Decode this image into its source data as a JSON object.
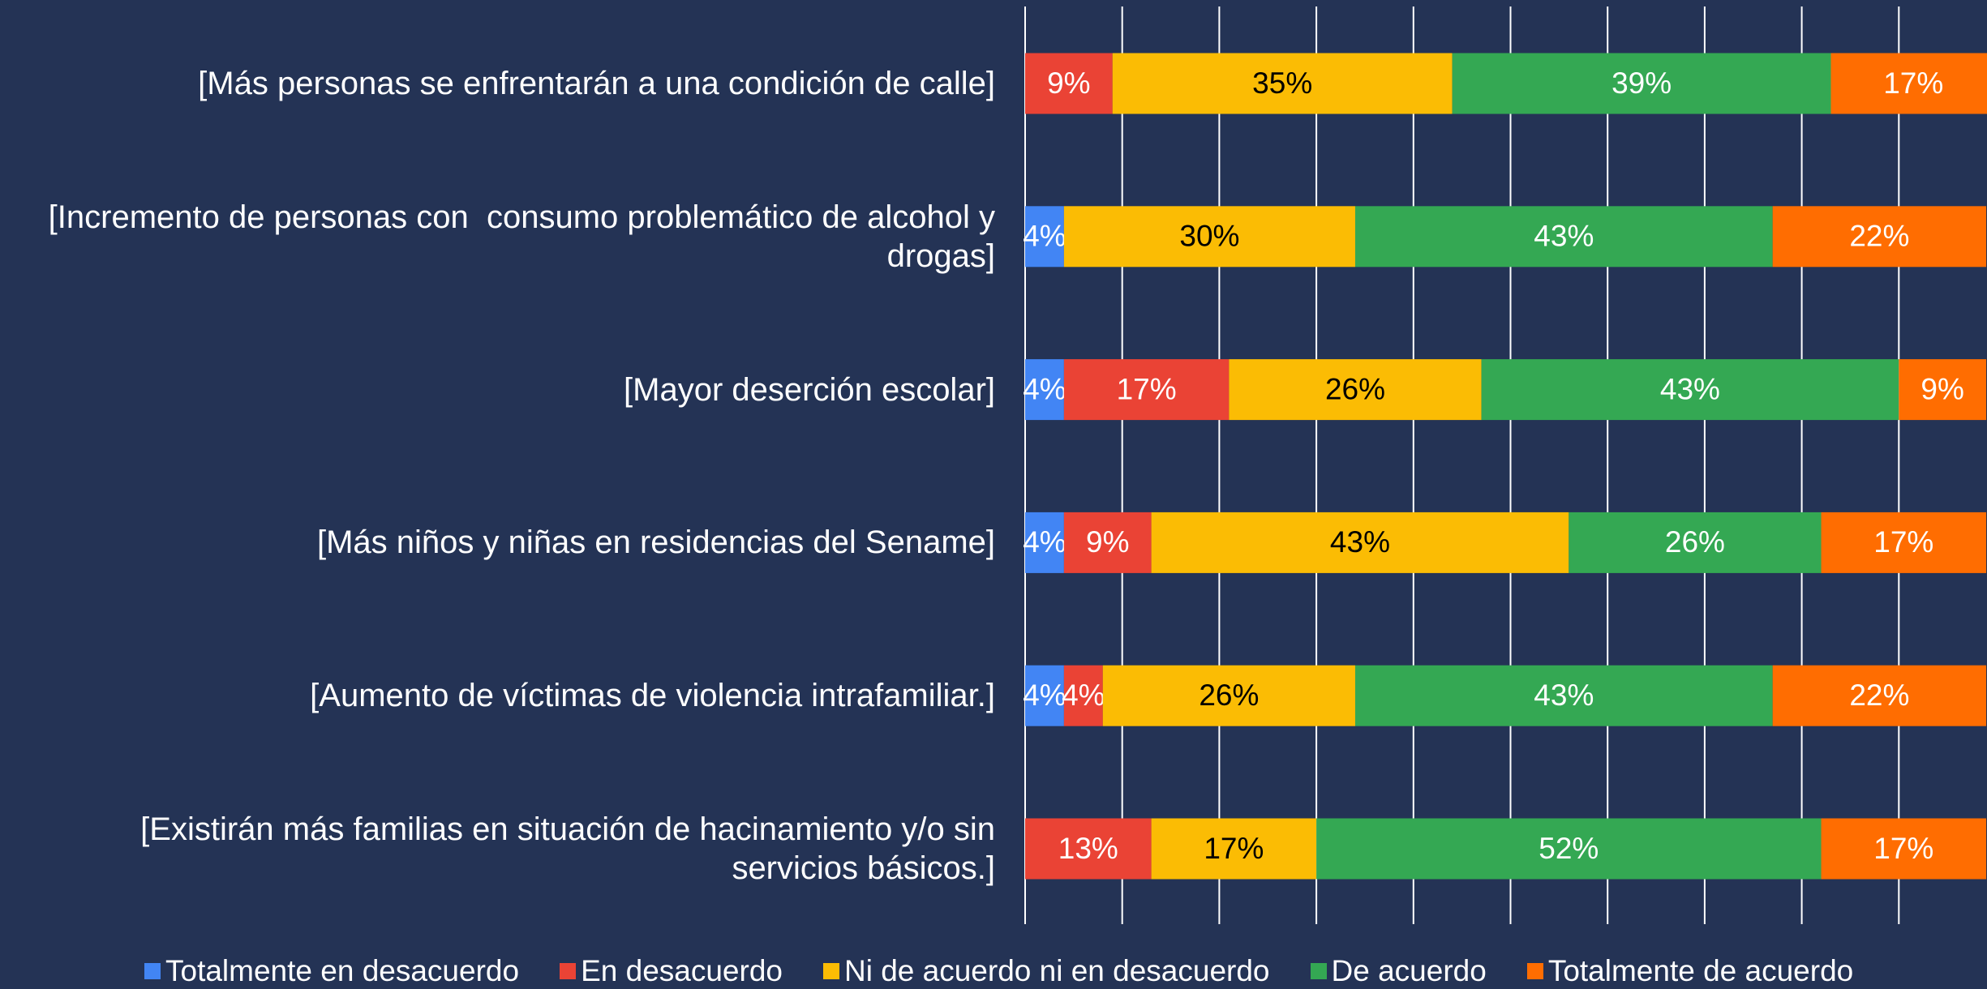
{
  "chart_data": {
    "type": "stacked-bar-horizontal",
    "categories": [
      "[Más personas se enfrentarán a una condición de calle]",
      "[Incremento de personas con  consumo problemático de alcohol y drogas]",
      "[Mayor deserción escolar]",
      "[Más niños y niñas en residencias del Sename]",
      "[Aumento de víctimas de violencia intrafamiliar.]",
      "[Existirán más familias en situación de hacinamiento y/o sin servicios básicos.]"
    ],
    "series": [
      {
        "name": "Totalmente en desacuerdo",
        "color": "#4285f4",
        "label_color": "#ffffff",
        "values": [
          null,
          4,
          4,
          4,
          4,
          null
        ],
        "value_labels": [
          null,
          "4%",
          "4%",
          "4%",
          "4%",
          null
        ]
      },
      {
        "name": "En desacuerdo",
        "color": "#ea4335",
        "label_color": "#ffffff",
        "values": [
          9,
          null,
          17,
          9,
          4,
          13
        ],
        "value_labels": [
          "9%",
          null,
          "17%",
          "9%",
          "4%",
          "13%"
        ]
      },
      {
        "name": "Ni de acuerdo ni en desacuerdo",
        "color": "#fbbc04",
        "label_color": "#000000",
        "values": [
          35,
          30,
          26,
          43,
          26,
          17
        ],
        "value_labels": [
          "35%",
          "30%",
          "26%",
          "43%",
          "26%",
          "17%"
        ]
      },
      {
        "name": "De acuerdo",
        "color": "#34a853",
        "label_color": "#ffffff",
        "values": [
          39,
          43,
          43,
          26,
          43,
          52
        ],
        "value_labels": [
          "39%",
          "43%",
          "43%",
          "26%",
          "43%",
          "52%"
        ]
      },
      {
        "name": "Totalmente de acuerdo",
        "color": "#ff6d01",
        "label_color": "#ffffff",
        "values": [
          17,
          22,
          9,
          17,
          22,
          17
        ],
        "value_labels": [
          "17%",
          "22%",
          "9%",
          "17%",
          "22%",
          "17%"
        ]
      }
    ],
    "xlim": [
      0,
      100
    ],
    "xticks": [
      0,
      10,
      20,
      30,
      40,
      50,
      60,
      70,
      80,
      90,
      100
    ],
    "grid": true,
    "legend": "bottom"
  }
}
